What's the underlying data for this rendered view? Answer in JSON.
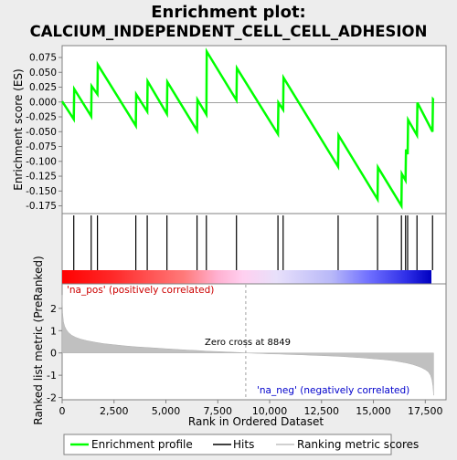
{
  "chart_data": {
    "type": "line",
    "title_line1": "Enrichment plot:",
    "title_line2": "CALCIUM_INDEPENDENT_CELL_CELL_ADHESION",
    "top_ylabel": "Enrichment score (ES)",
    "bottom_ylabel": "Ranked list metric (PreRanked)",
    "xlabel": "Rank in Ordered Dataset",
    "es_yticks": [
      "0.075",
      "0.050",
      "0.025",
      "0.000",
      "-0.025",
      "-0.050",
      "-0.075",
      "-0.100",
      "-0.125",
      "-0.150",
      "-0.175"
    ],
    "es_ylim": [
      -0.188,
      0.095
    ],
    "metric_yticks": [
      "2",
      "1",
      "0",
      "-1",
      "-2"
    ],
    "metric_ylim": [
      -2.1,
      3.1
    ],
    "xticks": [
      "0",
      "2,500",
      "5,000",
      "7,500",
      "10,000",
      "12,500",
      "15,000",
      "17,500"
    ],
    "xlim": [
      0,
      18500
    ],
    "n_genes": 17900,
    "zero_cross_rank": 8849,
    "zero_cross_label": "Zero cross at 8849",
    "pos_label": "'na_pos' (positively correlated)",
    "neg_label": "'na_neg' (negatively correlated)",
    "es_profile": {
      "x": [
        0,
        560,
        580,
        1400,
        1420,
        1700,
        1720,
        3550,
        3570,
        4100,
        4120,
        5050,
        5070,
        6500,
        6520,
        6950,
        6970,
        8400,
        8420,
        10400,
        10420,
        10650,
        10670,
        13300,
        13320,
        15200,
        15220,
        16350,
        16370,
        16550,
        16570,
        16650,
        16670,
        17100,
        17120,
        17850,
        17870,
        17900
      ],
      "y": [
        0.001,
        -0.029,
        0.022,
        -0.024,
        0.027,
        0.013,
        0.063,
        -0.04,
        0.013,
        -0.016,
        0.035,
        -0.02,
        0.034,
        -0.048,
        0.004,
        -0.021,
        0.085,
        0.003,
        0.057,
        -0.054,
        -0.001,
        -0.013,
        0.041,
        -0.109,
        -0.056,
        -0.164,
        -0.11,
        -0.175,
        -0.121,
        -0.132,
        -0.08,
        -0.088,
        -0.03,
        -0.056,
        -0.001,
        -0.05,
        0.005,
        0.004
      ]
    },
    "hits": [
      560,
      1400,
      1700,
      3550,
      4100,
      5050,
      6500,
      6950,
      8400,
      10400,
      10650,
      13300,
      15200,
      16350,
      16550,
      16650,
      17100,
      17850
    ],
    "metric_curve": {
      "x": [
        0,
        20,
        60,
        120,
        200,
        300,
        450,
        650,
        900,
        1200,
        1600,
        2000,
        2500,
        3000,
        3500,
        4000,
        4500,
        5000,
        5500,
        6000,
        6500,
        7000,
        7500,
        8000,
        8500,
        8849,
        9500,
        10000,
        10500,
        11000,
        11500,
        12000,
        12500,
        13000,
        13500,
        14000,
        14500,
        15000,
        15500,
        16000,
        16300,
        16600,
        16900,
        17100,
        17300,
        17500,
        17650,
        17750,
        17820,
        17870,
        17900
      ],
      "y": [
        2.6,
        1.8,
        1.4,
        1.2,
        1.05,
        0.92,
        0.8,
        0.7,
        0.62,
        0.55,
        0.48,
        0.42,
        0.37,
        0.32,
        0.28,
        0.25,
        0.22,
        0.19,
        0.16,
        0.13,
        0.11,
        0.08,
        0.06,
        0.04,
        0.02,
        0.0,
        -0.02,
        -0.04,
        -0.05,
        -0.07,
        -0.08,
        -0.1,
        -0.12,
        -0.14,
        -0.16,
        -0.19,
        -0.22,
        -0.26,
        -0.3,
        -0.35,
        -0.4,
        -0.45,
        -0.52,
        -0.58,
        -0.65,
        -0.75,
        -0.85,
        -1.0,
        -1.2,
        -1.5,
        -1.9
      ]
    },
    "colors": {
      "background": "#ededed",
      "es_line": "#00ff00",
      "hit": "#000000",
      "metric_fill": "#c0c0c0",
      "zero_line": "#a0a0a0",
      "pos_text": "#cc0000",
      "neg_text": "#0000cc"
    },
    "heatmap_stops": [
      "#ff0000",
      "#ff6060",
      "#ffc0e8",
      "#e0d8f8",
      "#6060ff",
      "#0000cc"
    ]
  },
  "legend": {
    "enrichment": "Enrichment profile",
    "hits": "Hits",
    "ranking": "Ranking metric scores"
  }
}
